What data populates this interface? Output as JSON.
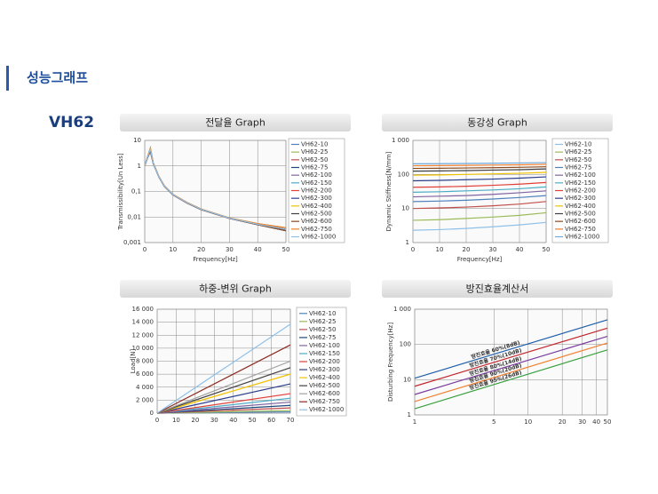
{
  "header": {
    "title": "성능그래프",
    "model": "VH62"
  },
  "chart_data": [
    {
      "type": "line",
      "title": "전달율 Graph",
      "xlabel": "Frequency[Hz]",
      "ylabel": "Transmissibility[Un Less]",
      "xlim": [
        0,
        50
      ],
      "xticks": [
        0,
        10,
        20,
        30,
        40,
        50
      ],
      "ylim": [
        0.001,
        10
      ],
      "yscale": "log",
      "yticks": [
        {
          "value": 0.001,
          "label": "0,001"
        },
        {
          "value": 0.01,
          "label": "0,01"
        },
        {
          "value": 0.1,
          "label": "0,1"
        },
        1,
        10
      ],
      "grid": true,
      "legend": "right",
      "x": [
        0,
        1,
        2,
        3,
        5,
        7,
        10,
        15,
        20,
        30,
        40,
        50
      ],
      "series": [
        {
          "name": "VH62-10",
          "color": "#4f81bd",
          "values": [
            1,
            2.2,
            4.5,
            1.3,
            0.38,
            0.16,
            0.075,
            0.036,
            0.02,
            0.009,
            0.0052,
            0.0033
          ]
        },
        {
          "name": "VH62-25",
          "color": "#9bbb59",
          "values": [
            1,
            2.1,
            3.8,
            1.25,
            0.37,
            0.155,
            0.073,
            0.035,
            0.0195,
            0.0088,
            0.005,
            0.0029
          ]
        },
        {
          "name": "VH62-50",
          "color": "#c0504d",
          "values": [
            1,
            2.3,
            5,
            1.35,
            0.39,
            0.165,
            0.077,
            0.037,
            0.0205,
            0.0092,
            0.0055,
            0.0038
          ]
        },
        {
          "name": "VH62-75",
          "color": "#1f497d",
          "values": [
            1,
            2.2,
            4.5,
            1.3,
            0.38,
            0.16,
            0.075,
            0.036,
            0.02,
            0.009,
            0.0052,
            0.0033
          ]
        },
        {
          "name": "VH62-100",
          "color": "#8064a2",
          "values": [
            1,
            2.1,
            3.8,
            1.25,
            0.37,
            0.155,
            0.073,
            0.035,
            0.0195,
            0.0088,
            0.005,
            0.0029
          ]
        },
        {
          "name": "VH62-150",
          "color": "#4bacc6",
          "values": [
            1,
            2.3,
            5,
            1.35,
            0.39,
            0.165,
            0.077,
            0.037,
            0.0205,
            0.0092,
            0.0055,
            0.0038
          ]
        },
        {
          "name": "VH62-200",
          "color": "#e0403a",
          "values": [
            1,
            2.2,
            4.5,
            1.3,
            0.38,
            0.16,
            0.075,
            0.036,
            0.02,
            0.009,
            0.0052,
            0.0033
          ]
        },
        {
          "name": "VH62-300",
          "color": "#2c3e8c",
          "values": [
            1,
            2.1,
            3.8,
            1.25,
            0.37,
            0.155,
            0.073,
            0.035,
            0.0195,
            0.0088,
            0.005,
            0.0029
          ]
        },
        {
          "name": "VH62-400",
          "color": "#f2c200",
          "values": [
            1,
            2.3,
            5,
            1.35,
            0.39,
            0.165,
            0.077,
            0.037,
            0.0205,
            0.0092,
            0.0055,
            0.0038
          ]
        },
        {
          "name": "VH62-500",
          "color": "#404040",
          "values": [
            1,
            2.2,
            4.5,
            1.3,
            0.38,
            0.16,
            0.075,
            0.036,
            0.02,
            0.009,
            0.0052,
            0.0033
          ]
        },
        {
          "name": "VH62-600",
          "color": "#8c4a20",
          "values": [
            1,
            2.1,
            3.8,
            1.25,
            0.37,
            0.155,
            0.073,
            0.035,
            0.0195,
            0.0088,
            0.005,
            0.0029
          ]
        },
        {
          "name": "VH62-750",
          "color": "#f08030",
          "values": [
            1,
            2.3,
            5,
            1.35,
            0.39,
            0.165,
            0.077,
            0.037,
            0.0205,
            0.0092,
            0.0055,
            0.0038
          ]
        },
        {
          "name": "VH62-1000",
          "color": "#8ec0e8",
          "values": [
            1,
            2.2,
            4.5,
            1.3,
            0.38,
            0.16,
            0.075,
            0.036,
            0.02,
            0.009,
            0.0052,
            0.0033
          ]
        }
      ]
    },
    {
      "type": "line",
      "title": "동강성 Graph",
      "xlabel": "Frequency[Hz]",
      "ylabel": "Dynamic Stiffness[N/mm]",
      "xlim": [
        0,
        50
      ],
      "xticks": [
        0,
        10,
        20,
        30,
        40,
        50
      ],
      "ylim": [
        1,
        1000
      ],
      "yscale": "log",
      "yticks": [
        1,
        10,
        100,
        {
          "value": 1000,
          "label": "1 000"
        }
      ],
      "grid": true,
      "legend": "right",
      "x": [
        0,
        10,
        20,
        30,
        40,
        50
      ],
      "series": [
        {
          "name": "VH62-10",
          "color": "#8ec0e8",
          "values": [
            2.3,
            2.4,
            2.6,
            2.9,
            3.3,
            3.9
          ]
        },
        {
          "name": "VH62-25",
          "color": "#9bbb59",
          "values": [
            4.5,
            4.7,
            5.1,
            5.6,
            6.3,
            7.5
          ]
        },
        {
          "name": "VH62-50",
          "color": "#c0504d",
          "values": [
            10,
            10.4,
            11,
            12,
            13.5,
            16
          ]
        },
        {
          "name": "VH62-75",
          "color": "#4f81bd",
          "values": [
            16,
            16.5,
            17.5,
            19,
            21,
            24
          ]
        },
        {
          "name": "VH62-100",
          "color": "#8064a2",
          "values": [
            22,
            23,
            24,
            26,
            29,
            33
          ]
        },
        {
          "name": "VH62-150",
          "color": "#4bacc6",
          "values": [
            30,
            31,
            33,
            35,
            38,
            43
          ]
        },
        {
          "name": "VH62-200",
          "color": "#e0403a",
          "values": [
            42,
            43,
            45,
            48,
            52,
            58
          ]
        },
        {
          "name": "VH62-300",
          "color": "#2c3e8c",
          "values": [
            65,
            67,
            70,
            73,
            78,
            85
          ]
        },
        {
          "name": "VH62-400",
          "color": "#f2c200",
          "values": [
            95,
            97,
            100,
            104,
            108,
            115
          ]
        },
        {
          "name": "VH62-500",
          "color": "#404040",
          "values": [
            125,
            127,
            130,
            134,
            138,
            145
          ]
        },
        {
          "name": "VH62-600",
          "color": "#8c4a20",
          "values": [
            150,
            152,
            155,
            158,
            162,
            168
          ]
        },
        {
          "name": "VH62-750",
          "color": "#f08030",
          "values": [
            180,
            182,
            185,
            188,
            192,
            198
          ]
        },
        {
          "name": "VH62-1000",
          "color": "#6fa8dc",
          "values": [
            205,
            207,
            210,
            213,
            217,
            222
          ]
        }
      ]
    },
    {
      "type": "line",
      "title": "하중-변위 Graph",
      "ylabel": "Load[N]",
      "xlim": [
        0,
        70
      ],
      "xticks": [
        0,
        10,
        20,
        30,
        40,
        50,
        60,
        70
      ],
      "ylim": [
        0,
        16000
      ],
      "yticks": [
        0,
        {
          "value": 2000,
          "label": "2 000"
        },
        {
          "value": 4000,
          "label": "4 000"
        },
        {
          "value": 6000,
          "label": "6 000"
        },
        {
          "value": 8000,
          "label": "8 000"
        },
        {
          "value": 10000,
          "label": "10 000"
        },
        {
          "value": 12000,
          "label": "12 000"
        },
        {
          "value": 14000,
          "label": "14 000"
        },
        {
          "value": 16000,
          "label": "16 000"
        }
      ],
      "grid": true,
      "legend": "right",
      "x": [
        0,
        70
      ],
      "series": [
        {
          "name": "VH62-10",
          "color": "#4f81bd",
          "values": [
            0,
            200
          ]
        },
        {
          "name": "VH62-25",
          "color": "#9bbb59",
          "values": [
            0,
            400
          ]
        },
        {
          "name": "VH62-50",
          "color": "#c0504d",
          "values": [
            0,
            800
          ]
        },
        {
          "name": "VH62-75",
          "color": "#1f497d",
          "values": [
            0,
            1200
          ]
        },
        {
          "name": "VH62-100",
          "color": "#8064a2",
          "values": [
            0,
            1700
          ]
        },
        {
          "name": "VH62-150",
          "color": "#4bacc6",
          "values": [
            0,
            2300
          ]
        },
        {
          "name": "VH62-200",
          "color": "#e0403a",
          "values": [
            0,
            3000
          ]
        },
        {
          "name": "VH62-300",
          "color": "#2c3e8c",
          "values": [
            0,
            4500
          ]
        },
        {
          "name": "VH62-400",
          "color": "#f2c200",
          "values": [
            0,
            6000
          ]
        },
        {
          "name": "VH62-500",
          "color": "#404040",
          "values": [
            0,
            7000
          ]
        },
        {
          "name": "VH62-600",
          "color": "#a0a0a0",
          "values": [
            0,
            8000
          ]
        },
        {
          "name": "VH62-750",
          "color": "#8c2a20",
          "values": [
            0,
            10500
          ]
        },
        {
          "name": "VH62-1000",
          "color": "#8ec0e8",
          "values": [
            0,
            13700
          ]
        }
      ]
    },
    {
      "type": "line",
      "title": "방진효율계산서",
      "ylabel": "Disturbing Frequency[Hz]",
      "xlim": [
        1,
        50
      ],
      "xscale": "log",
      "xticks": [
        1,
        5,
        10,
        20,
        30,
        40,
        50
      ],
      "ylim": [
        1,
        1000
      ],
      "yscale": "log",
      "yticks": [
        1,
        10,
        100,
        {
          "value": 1000,
          "label": "1 000"
        }
      ],
      "grid": true,
      "legend": "inline",
      "x": [
        1,
        50
      ],
      "series": [
        {
          "name": "방진효율 60%(8dB)",
          "color": "#1f5fa8",
          "values": [
            11,
            500
          ]
        },
        {
          "name": "방진효율 70%(10dB)",
          "color": "#c0282d",
          "values": [
            6.5,
            290
          ]
        },
        {
          "name": "방진효율 80%(14dB)",
          "color": "#7b3fa0",
          "values": [
            3.8,
            170
          ]
        },
        {
          "name": "방진효율 90%(20dB)",
          "color": "#f08030",
          "values": [
            2.4,
            110
          ]
        },
        {
          "name": "방진효율 95%(26dB)",
          "color": "#3aa040",
          "values": [
            1.5,
            70
          ]
        }
      ]
    }
  ]
}
